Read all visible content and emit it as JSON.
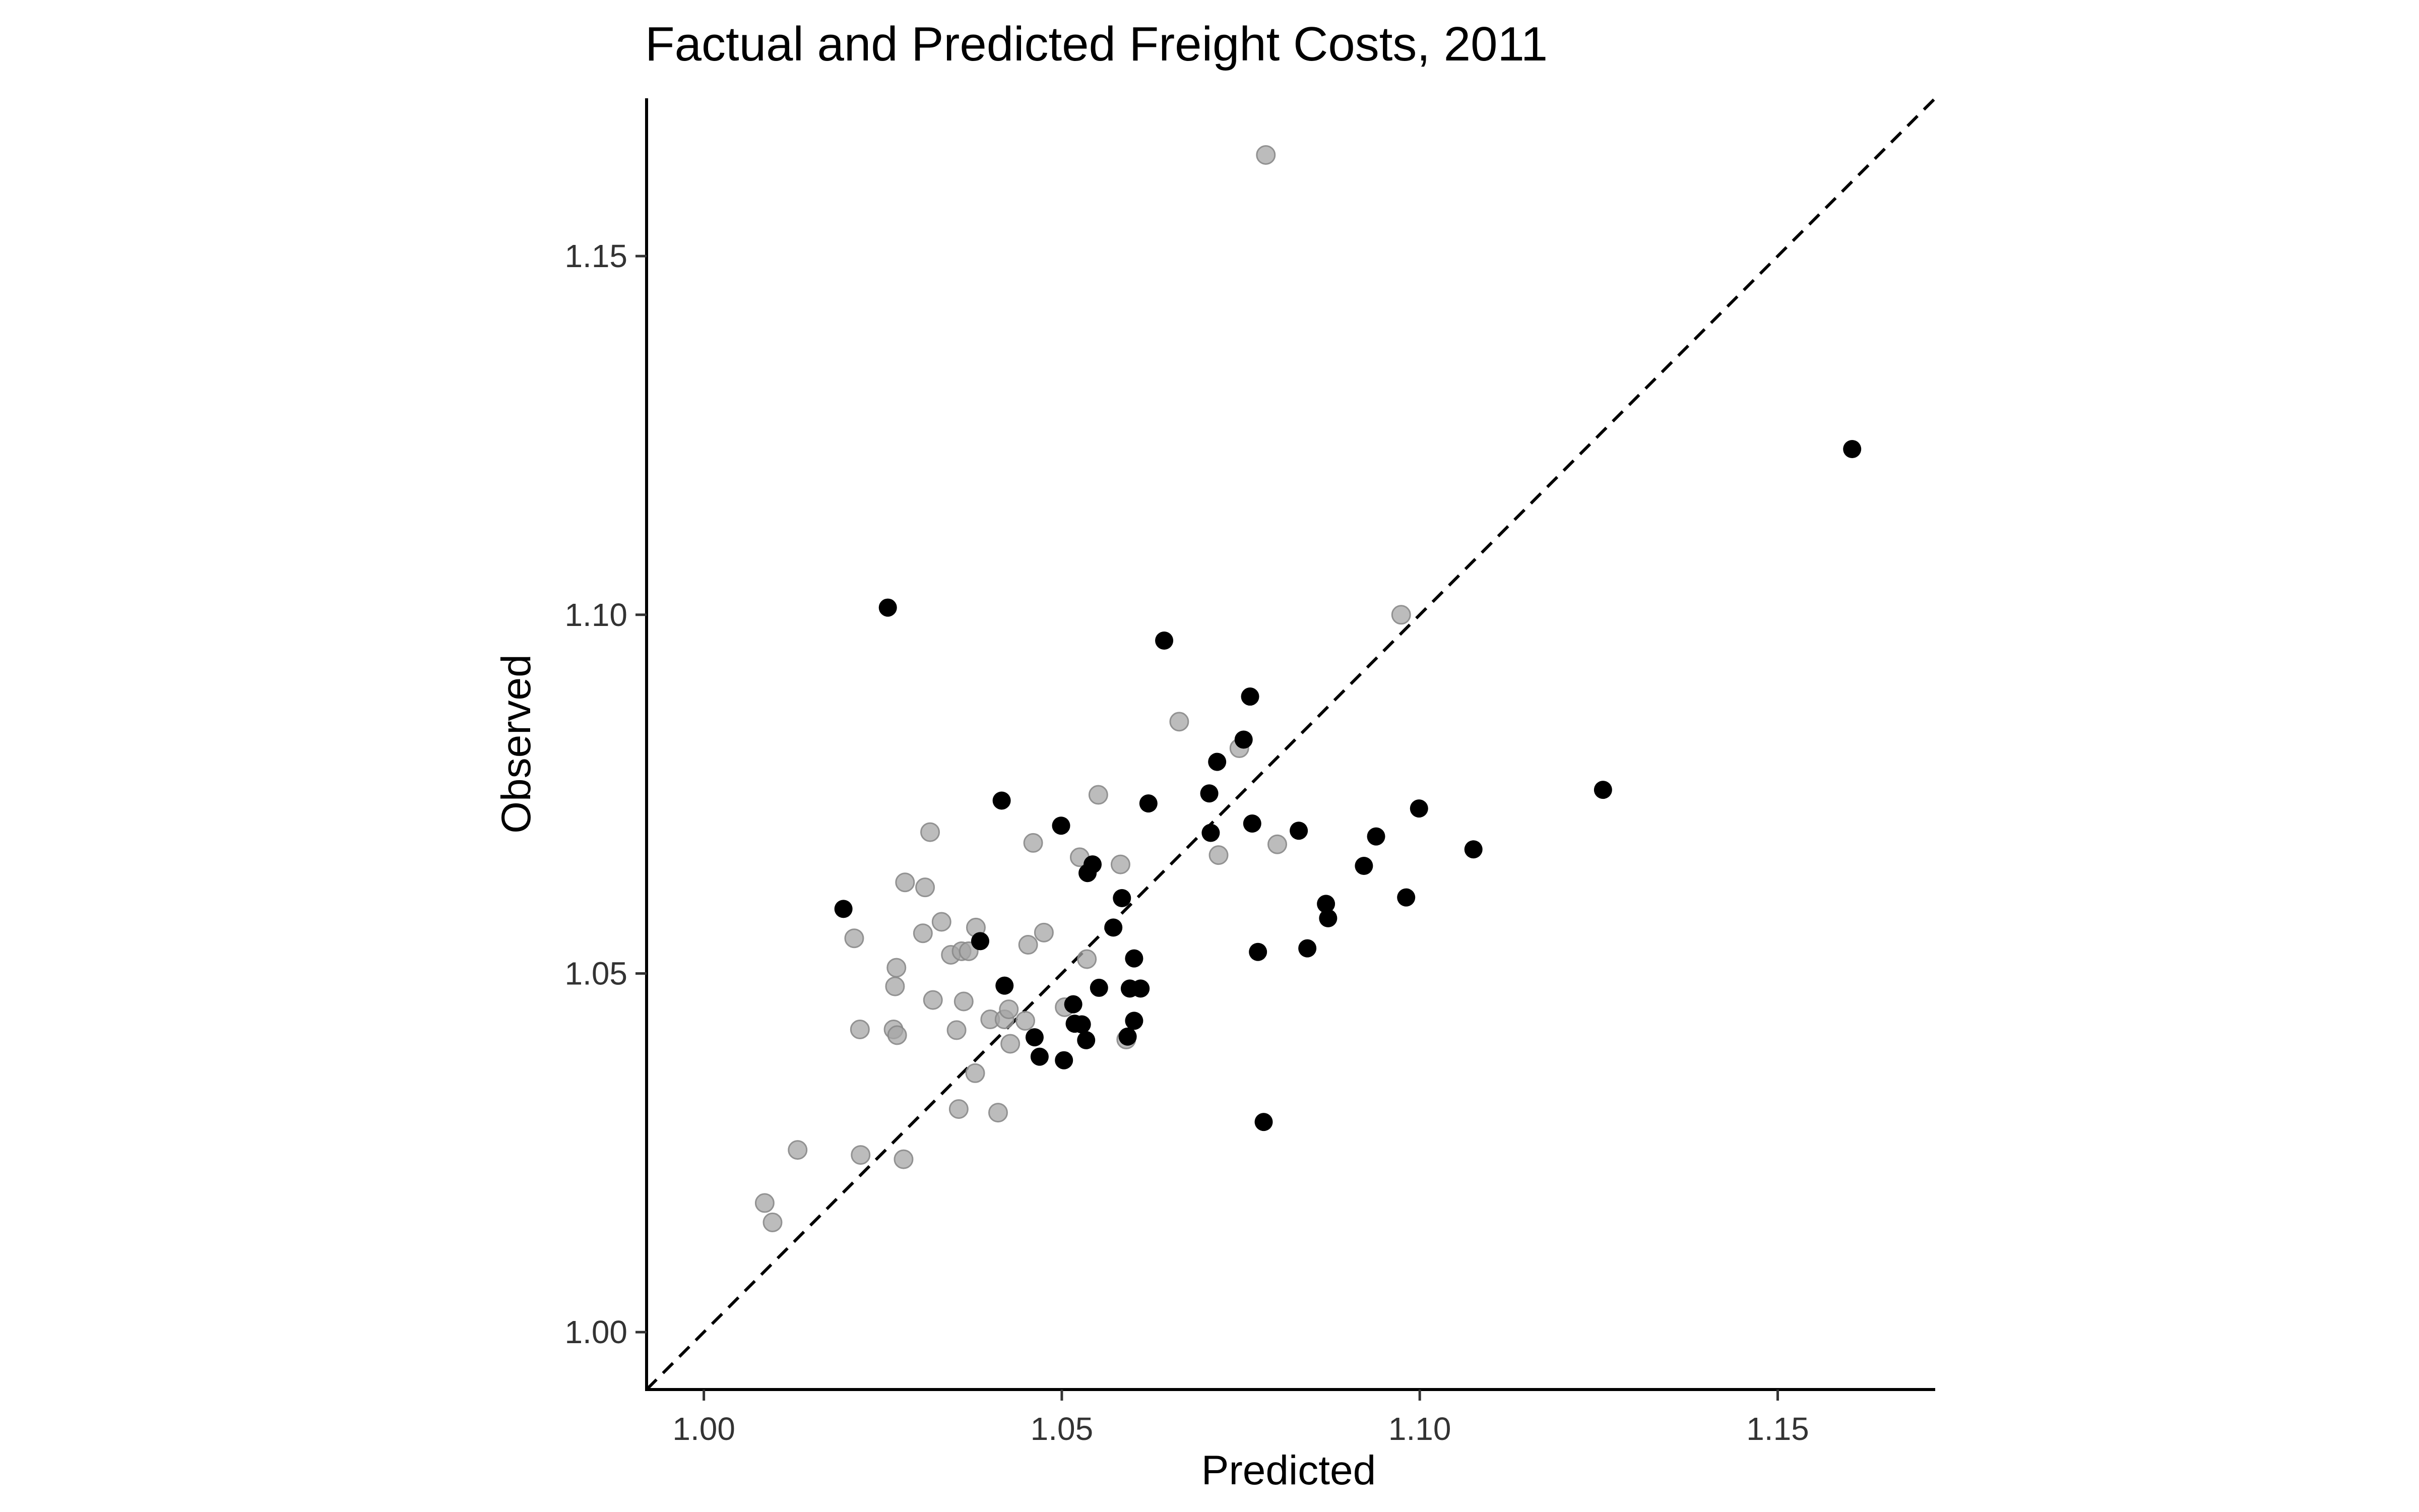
{
  "chart_data": {
    "type": "scatter",
    "title": "Factual and Predicted Freight Costs, 2011",
    "xlabel": "Predicted",
    "ylabel": "Observed",
    "xlim": [
      0.992,
      1.172
    ],
    "ylim": [
      0.992,
      1.172
    ],
    "x_ticks": [
      "1.00",
      "1.05",
      "1.10",
      "1.15"
    ],
    "y_ticks": [
      "1.00",
      "1.05",
      "1.10",
      "1.15"
    ],
    "grid": false,
    "legend": "none",
    "reference_line": {
      "style": "dashed",
      "slope": 1,
      "intercept": 0
    },
    "colors": {
      "series_black": "#000000",
      "series_gray": "#a6a6a6",
      "axis": "#000000"
    },
    "series": [
      {
        "color": "#000000",
        "points": [
          [
            1.0195,
            1.059
          ],
          [
            1.0257,
            1.101
          ],
          [
            1.0386,
            1.0545
          ],
          [
            1.0416,
            1.0741
          ],
          [
            1.042,
            1.0483
          ],
          [
            1.0462,
            1.0411
          ],
          [
            1.0469,
            1.0384
          ],
          [
            1.0499,
            1.0706
          ],
          [
            1.0503,
            1.0379
          ],
          [
            1.0516,
            1.0457
          ],
          [
            1.0518,
            1.043
          ],
          [
            1.0528,
            1.0429
          ],
          [
            1.0534,
            1.0407
          ],
          [
            1.0536,
            1.064
          ],
          [
            1.0543,
            1.0652
          ],
          [
            1.0552,
            1.048
          ],
          [
            1.0572,
            1.0564
          ],
          [
            1.0584,
            1.0605
          ],
          [
            1.0592,
            1.0412
          ],
          [
            1.0595,
            1.0479
          ],
          [
            1.0601,
            1.0521
          ],
          [
            1.0601,
            1.0434
          ],
          [
            1.061,
            1.0479
          ],
          [
            1.0621,
            1.0737
          ],
          [
            1.0643,
            1.0964
          ],
          [
            1.0706,
            1.0751
          ],
          [
            1.0708,
            1.0696
          ],
          [
            1.0717,
            1.0795
          ],
          [
            1.0754,
            1.0826
          ],
          [
            1.0763,
            1.0886
          ],
          [
            1.0766,
            1.0709
          ],
          [
            1.0774,
            1.053
          ],
          [
            1.0782,
            1.0293
          ],
          [
            1.0831,
            1.0699
          ],
          [
            1.0843,
            1.0535
          ],
          [
            1.0869,
            1.0597
          ],
          [
            1.0872,
            1.0577
          ],
          [
            1.0922,
            1.065
          ],
          [
            1.0939,
            1.0691
          ],
          [
            1.0981,
            1.0606
          ],
          [
            1.0999,
            1.073
          ],
          [
            1.1075,
            1.0673
          ],
          [
            1.1256,
            1.0756
          ],
          [
            1.1604,
            1.1231
          ]
        ]
      },
      {
        "color": "#a6a6a6",
        "points": [
          [
            1.0085,
            1.018
          ],
          [
            1.0096,
            1.0153
          ],
          [
            1.0131,
            1.0254
          ],
          [
            1.021,
            1.0549
          ],
          [
            1.0218,
            1.0422
          ],
          [
            1.0219,
            1.0247
          ],
          [
            1.0265,
            1.0422
          ],
          [
            1.0267,
            1.0482
          ],
          [
            1.0269,
            1.0508
          ],
          [
            1.027,
            1.0414
          ],
          [
            1.0279,
            1.0241
          ],
          [
            1.0281,
            1.0627
          ],
          [
            1.0306,
            1.0556
          ],
          [
            1.0309,
            1.062
          ],
          [
            1.0316,
            1.0697
          ],
          [
            1.032,
            1.0463
          ],
          [
            1.0332,
            1.0572
          ],
          [
            1.0345,
            1.0526
          ],
          [
            1.0353,
            1.0421
          ],
          [
            1.0356,
            1.0311
          ],
          [
            1.036,
            1.0531
          ],
          [
            1.0363,
            1.0461
          ],
          [
            1.037,
            1.0531
          ],
          [
            1.0379,
            1.0361
          ],
          [
            1.038,
            1.0564
          ],
          [
            1.04,
            1.0436
          ],
          [
            1.0411,
            1.0306
          ],
          [
            1.042,
            1.0436
          ],
          [
            1.0426,
            1.045
          ],
          [
            1.0428,
            1.0402
          ],
          [
            1.0449,
            1.0434
          ],
          [
            1.0453,
            1.054
          ],
          [
            1.046,
            1.0682
          ],
          [
            1.0475,
            1.0557
          ],
          [
            1.0504,
            1.0453
          ],
          [
            1.0525,
            1.0662
          ],
          [
            1.0535,
            1.052
          ],
          [
            1.0551,
            1.0749
          ],
          [
            1.0582,
            1.0652
          ],
          [
            1.059,
            1.0408
          ],
          [
            1.0664,
            1.0851
          ],
          [
            1.0719,
            1.0665
          ],
          [
            1.0748,
            1.0814
          ],
          [
            1.0801,
            1.068
          ],
          [
            1.0785,
            1.1641
          ],
          [
            1.0974,
            1.1
          ]
        ]
      }
    ]
  }
}
